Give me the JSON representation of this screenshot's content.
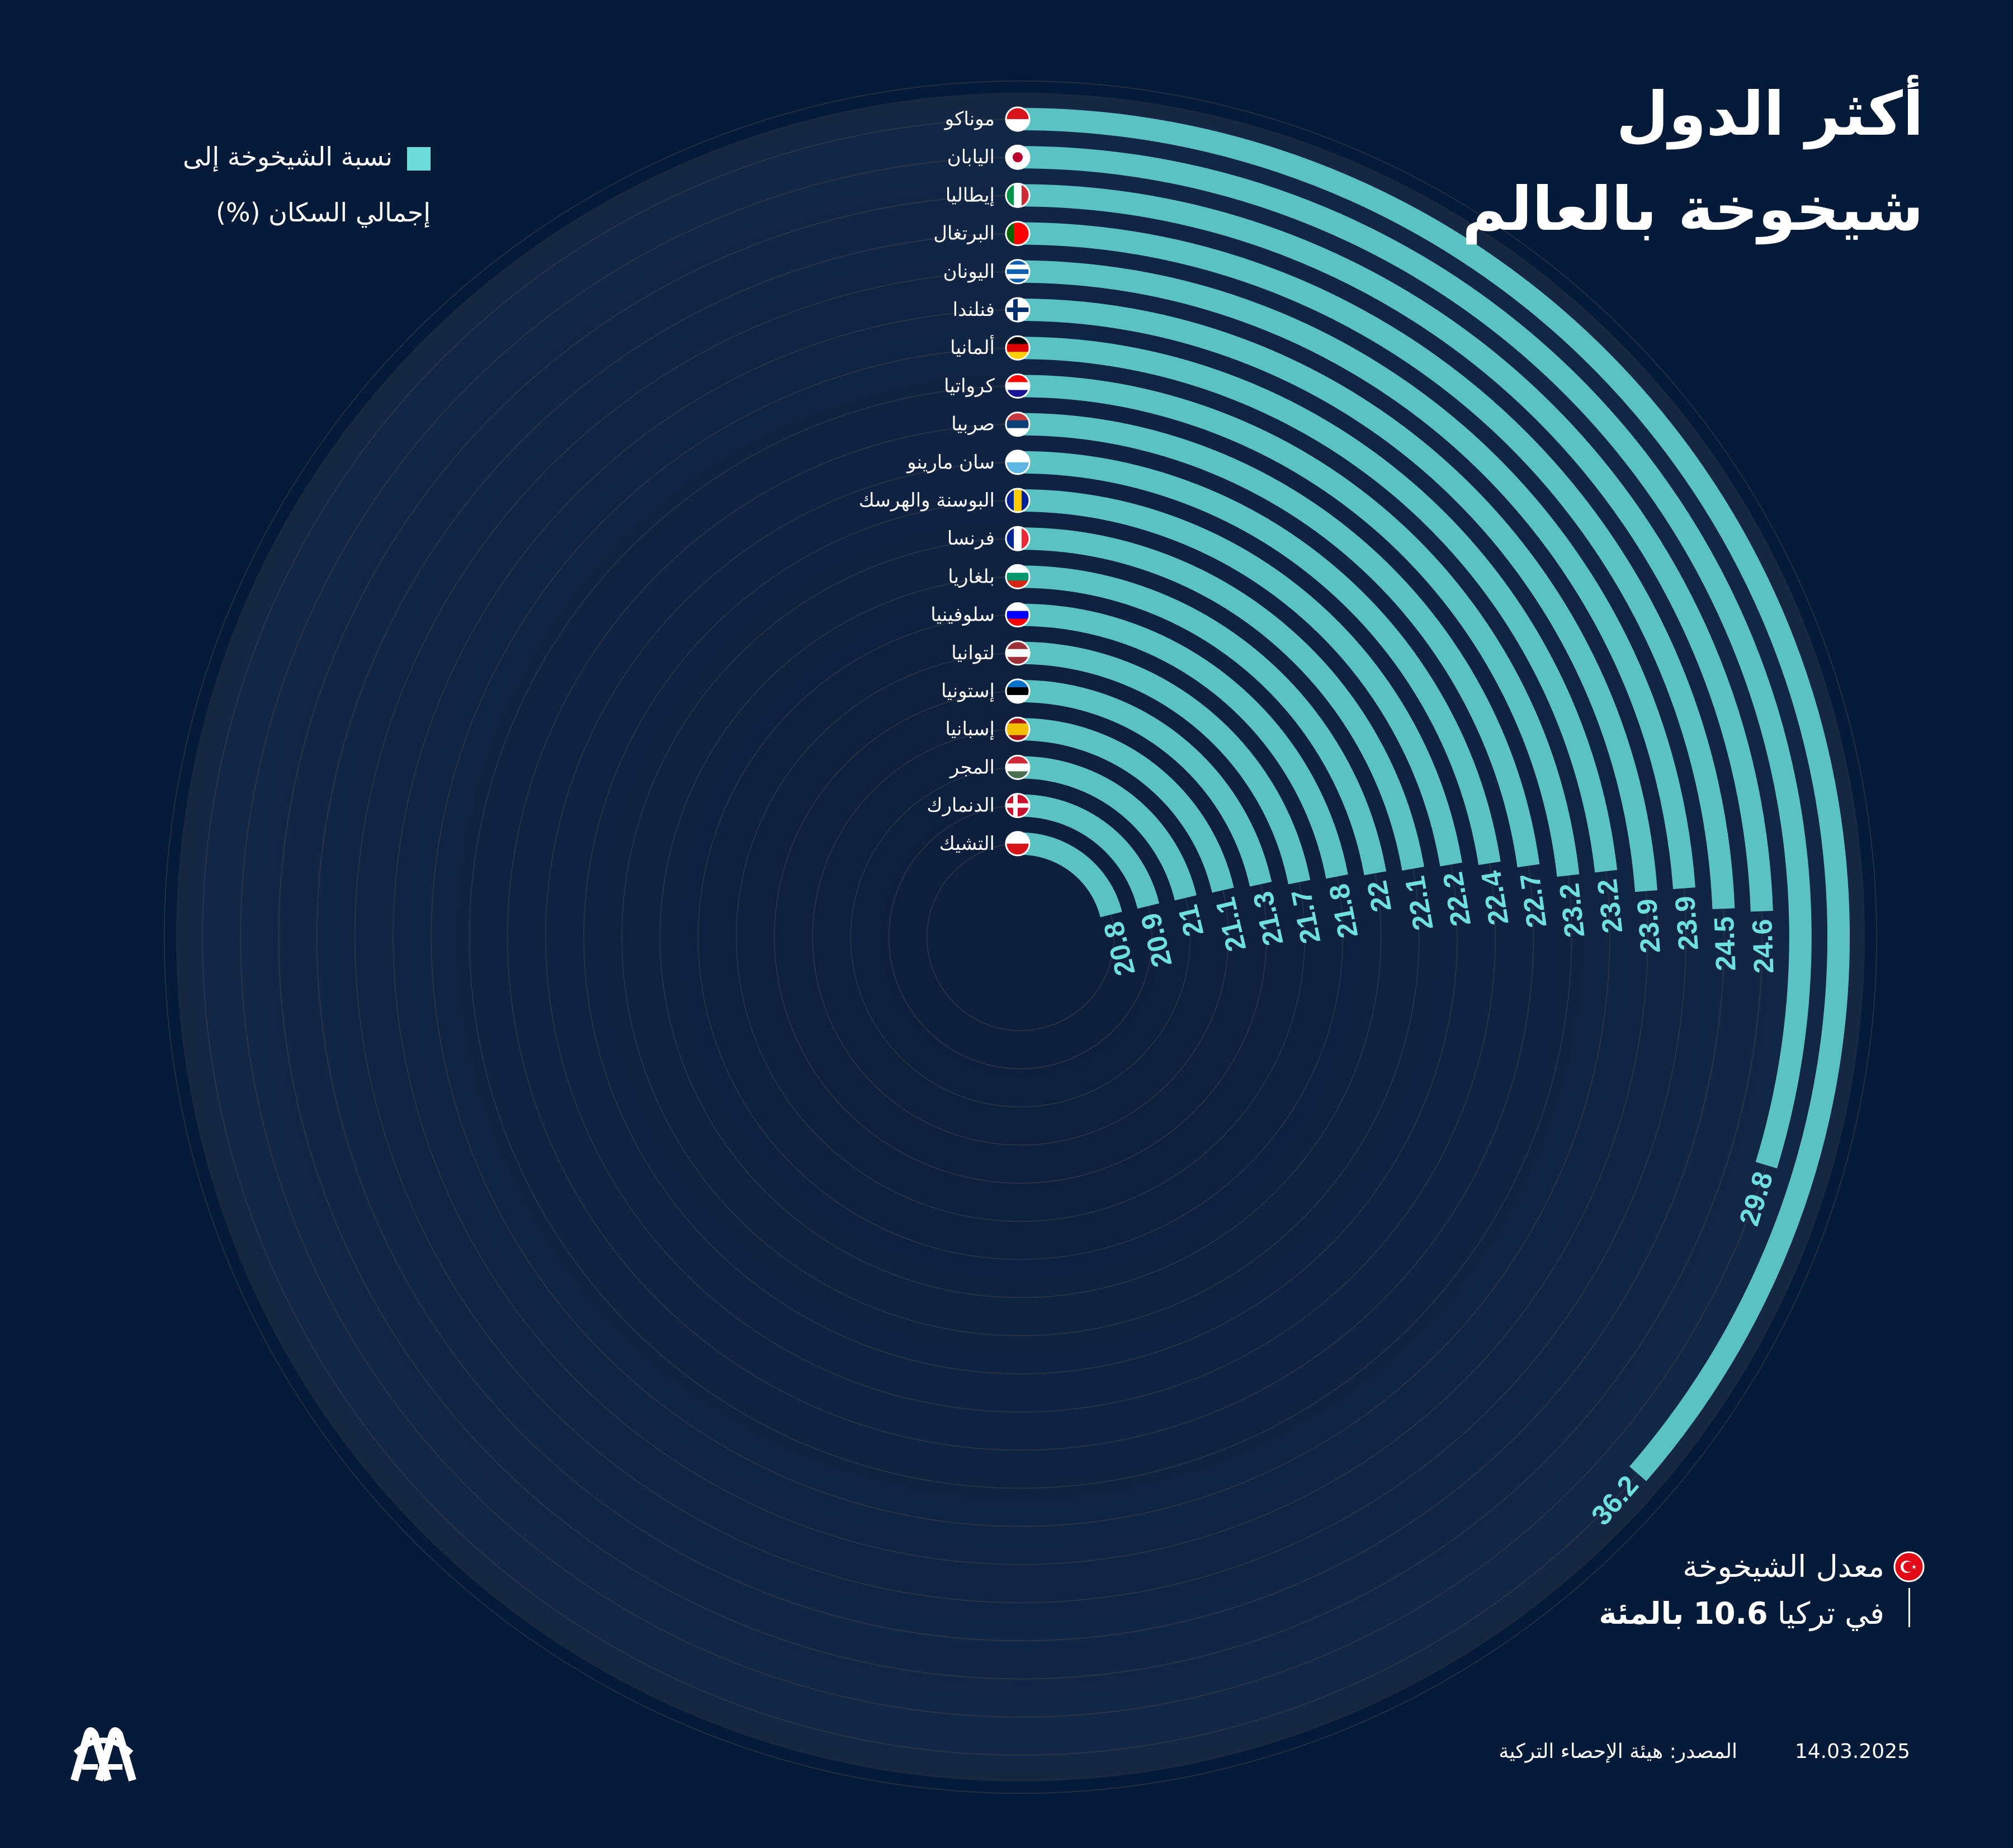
{
  "title": {
    "line1": "أكثر الدول",
    "line2": "شيخوخة بالعالم"
  },
  "legend": {
    "line1": "نسبة الشيخوخة إلى",
    "line2": "إجمالي السكان (%)",
    "color": "#6fdcdc"
  },
  "colors": {
    "background": "#031a38",
    "disc": "#10223f",
    "bar": "#5bc2c4",
    "value_label": "#6fe0e0",
    "gridline": "#3a3f4a"
  },
  "chart_data": {
    "type": "radial-bar",
    "unit": "%",
    "order": "outer-to-inner",
    "categories": [
      "موناكو",
      "اليابان",
      "إيطاليا",
      "البرتغال",
      "اليونان",
      "فنلندا",
      "ألمانيا",
      "كرواتيا",
      "صربيا",
      "سان مارينو",
      "البوسنة والهرسك",
      "فرنسا",
      "بلغاريا",
      "سلوفينيا",
      "لتوانيا",
      "إستونيا",
      "إسبانيا",
      "المجر",
      "الدنمارك",
      "التشيك"
    ],
    "values": [
      36.2,
      29.8,
      24.6,
      24.5,
      23.9,
      23.9,
      23.2,
      23.2,
      22.7,
      22.4,
      22.2,
      22.1,
      22,
      21.8,
      21.7,
      21.3,
      21.1,
      21,
      20.9,
      20.8
    ],
    "labels": [
      "36.2",
      "29.8",
      "24.6",
      "24.5",
      "23.9",
      "23.9",
      "23.2",
      "23.2",
      "22.7",
      "22.4",
      "22.2",
      "22.1",
      "22",
      "21.8",
      "21.7",
      "21.3",
      "21.1",
      "21",
      "20.9",
      "20.8"
    ],
    "flags": [
      {
        "type": "h",
        "colors": [
          "#d7141a",
          "#ffffff"
        ]
      },
      {
        "type": "disc",
        "colors": [
          "#ffffff",
          "#bc002d"
        ]
      },
      {
        "type": "v",
        "colors": [
          "#009246",
          "#ffffff",
          "#ce2b37"
        ]
      },
      {
        "type": "v",
        "colors": [
          "#006600",
          "#ff0000",
          "#ff0000"
        ]
      },
      {
        "type": "h",
        "colors": [
          "#0d5eaf",
          "#ffffff",
          "#0d5eaf",
          "#ffffff",
          "#0d5eaf"
        ]
      },
      {
        "type": "cross",
        "colors": [
          "#ffffff",
          "#002f6c"
        ]
      },
      {
        "type": "h",
        "colors": [
          "#000000",
          "#dd0000",
          "#ffce00"
        ]
      },
      {
        "type": "h",
        "colors": [
          "#ff0000",
          "#ffffff",
          "#171796"
        ]
      },
      {
        "type": "h",
        "colors": [
          "#c6363c",
          "#0c4076",
          "#ffffff"
        ]
      },
      {
        "type": "h",
        "colors": [
          "#ffffff",
          "#5eb6e4"
        ]
      },
      {
        "type": "v",
        "colors": [
          "#002395",
          "#fecb00",
          "#002395"
        ]
      },
      {
        "type": "v",
        "colors": [
          "#002395",
          "#ffffff",
          "#ed2939"
        ]
      },
      {
        "type": "h",
        "colors": [
          "#ffffff",
          "#00966e",
          "#d62612"
        ]
      },
      {
        "type": "h",
        "colors": [
          "#ffffff",
          "#0000ff",
          "#ff0000"
        ]
      },
      {
        "type": "h",
        "colors": [
          "#9e3039",
          "#ffffff",
          "#9e3039"
        ]
      },
      {
        "type": "h",
        "colors": [
          "#0072ce",
          "#000000",
          "#ffffff"
        ]
      },
      {
        "type": "h",
        "colors": [
          "#aa151b",
          "#f1bf00",
          "#f1bf00",
          "#aa151b"
        ]
      },
      {
        "type": "h",
        "colors": [
          "#ce2939",
          "#ffffff",
          "#477050"
        ]
      },
      {
        "type": "cross",
        "colors": [
          "#c8102e",
          "#ffffff"
        ]
      },
      {
        "type": "h",
        "colors": [
          "#ffffff",
          "#d7141a"
        ]
      }
    ]
  },
  "turkey_note": {
    "line1": "معدل الشيخوخة",
    "line2_prefix": "في تركيا",
    "value": "10.6",
    "line2_suffix": "بالمئة",
    "flag_colors": [
      "#e30a17",
      "#ffffff"
    ]
  },
  "footer": {
    "source": "المصدر: هيئة الإحصاء التركية",
    "date": "14.03.2025"
  },
  "logo": {
    "text": "AA"
  }
}
